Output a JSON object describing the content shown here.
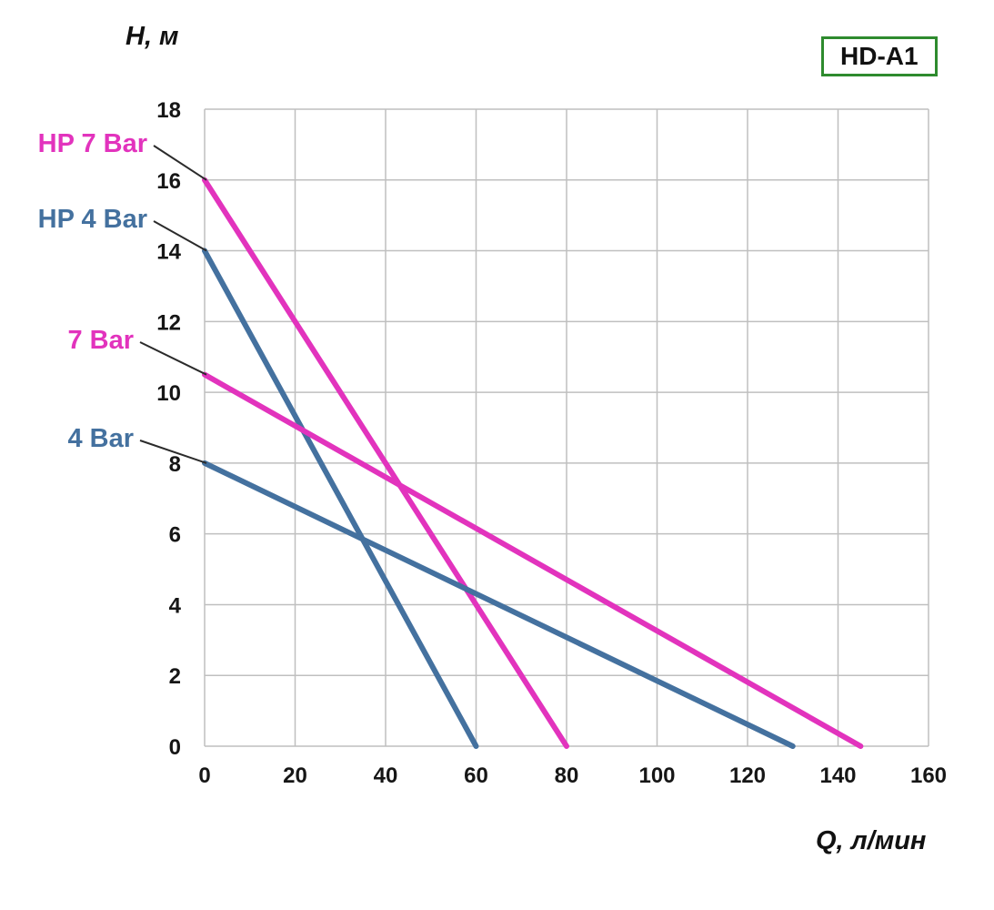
{
  "page": {
    "background": "#ffffff"
  },
  "model_badge": {
    "label": "HD-A1",
    "border_color": "#2e8b2e",
    "text_color": "#111111"
  },
  "chart_data": {
    "type": "line",
    "title": "HD-A1",
    "xlabel": "Q, л/мин",
    "ylabel": "H, м",
    "xlim": [
      0,
      160
    ],
    "ylim": [
      0,
      18
    ],
    "x_ticks": [
      0,
      20,
      40,
      60,
      80,
      100,
      120,
      140,
      160
    ],
    "y_ticks": [
      0,
      2,
      4,
      6,
      8,
      10,
      12,
      14,
      16,
      18
    ],
    "grid": true,
    "grid_color": "#bfbfbf",
    "legend_position": "left annotations with connector lines to curve start points",
    "series": [
      {
        "name": "HP 7 Bar",
        "color": "#e233bd",
        "points": [
          [
            0,
            16
          ],
          [
            80,
            0
          ]
        ]
      },
      {
        "name": "HP 4 Bar",
        "color": "#44719f",
        "points": [
          [
            0,
            14
          ],
          [
            60,
            0
          ]
        ]
      },
      {
        "name": "7 Bar",
        "color": "#e233bd",
        "points": [
          [
            0,
            10.5
          ],
          [
            145,
            0
          ]
        ]
      },
      {
        "name": "4 Bar",
        "color": "#44719f",
        "points": [
          [
            0,
            8
          ],
          [
            130,
            0
          ]
        ]
      }
    ]
  }
}
